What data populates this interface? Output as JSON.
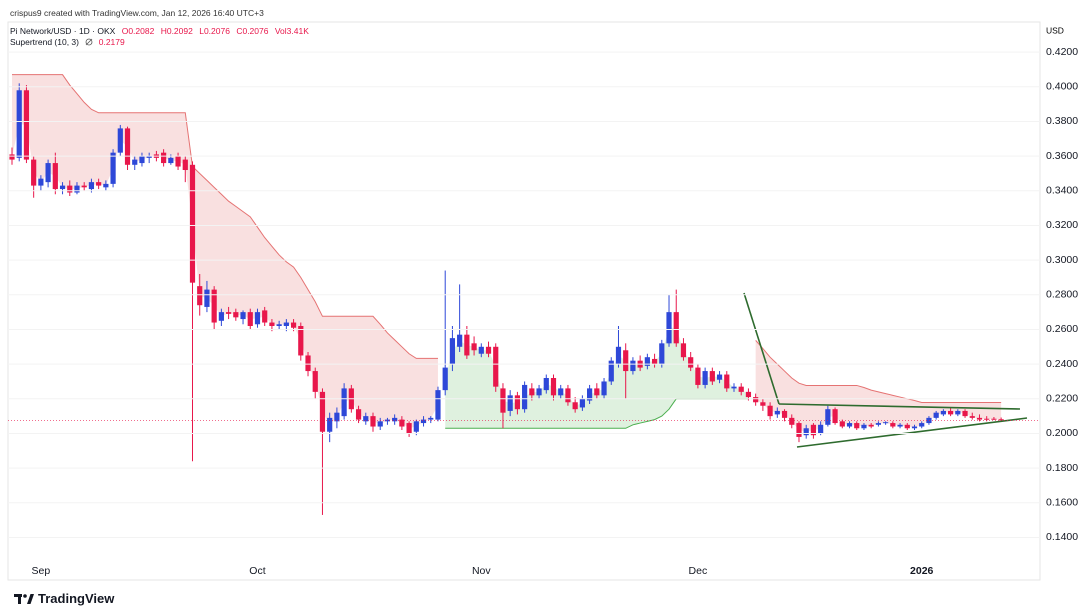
{
  "chart_data": {
    "type": "candlestick",
    "credit": "crispus9 created with TradingView.com, Jan 12, 2026 16:40 UTC+3",
    "symbol": "Pi Network/USD · 1D · OKX",
    "legend_ohlc": [
      "O0.2082",
      "H0.2092",
      "L0.2076",
      "C0.2076",
      "Vol3.41K"
    ],
    "indicator": "Supertrend (10, 3)",
    "indicator_value": "0.2179",
    "currency": "USD",
    "footer": "TradingView",
    "up_color": "#2e48d8",
    "down_color": "#e8174b",
    "supertrend_up_color": "#4caf50",
    "supertrend_down_color": "#e57373",
    "ylim": [
      0.127,
      0.427
    ],
    "yticks": [
      {
        "value": 0.14,
        "label": "0.1400"
      },
      {
        "value": 0.16,
        "label": "0.1600"
      },
      {
        "value": 0.18,
        "label": "0.1800"
      },
      {
        "value": 0.2,
        "label": "0.2000"
      },
      {
        "value": 0.22,
        "label": "0.2200"
      },
      {
        "value": 0.24,
        "label": "0.2400"
      },
      {
        "value": 0.26,
        "label": "0.2600"
      },
      {
        "value": 0.28,
        "label": "0.2800"
      },
      {
        "value": 0.3,
        "label": "0.3000"
      },
      {
        "value": 0.32,
        "label": "0.3200"
      },
      {
        "value": 0.34,
        "label": "0.3400"
      },
      {
        "value": 0.36,
        "label": "0.3600"
      },
      {
        "value": 0.38,
        "label": "0.3800"
      },
      {
        "value": 0.4,
        "label": "0.4000"
      },
      {
        "value": 0.42,
        "label": "0.4200"
      }
    ],
    "categories": [
      null,
      null,
      null,
      null,
      "Sep",
      null,
      null,
      null,
      null,
      null,
      null,
      null,
      null,
      null,
      null,
      null,
      null,
      null,
      null,
      null,
      null,
      null,
      null,
      null,
      null,
      null,
      null,
      null,
      null,
      null,
      null,
      null,
      null,
      null,
      "Oct",
      null,
      null,
      null,
      null,
      null,
      null,
      null,
      null,
      null,
      null,
      null,
      null,
      null,
      null,
      null,
      null,
      null,
      null,
      null,
      null,
      null,
      null,
      null,
      null,
      null,
      null,
      null,
      null,
      null,
      null,
      "Nov",
      null,
      null,
      null,
      null,
      null,
      null,
      null,
      null,
      null,
      null,
      null,
      null,
      null,
      null,
      null,
      null,
      null,
      null,
      null,
      null,
      null,
      null,
      null,
      null,
      null,
      null,
      null,
      null,
      null,
      "Dec",
      null,
      null,
      null,
      null,
      null,
      null,
      null,
      null,
      null,
      null,
      null,
      null,
      null,
      null,
      null,
      null,
      null,
      null,
      null,
      null,
      null,
      null,
      null,
      null,
      null,
      null,
      null,
      null,
      null,
      null,
      "2026",
      null,
      null,
      null,
      null,
      null,
      null,
      null,
      null,
      null,
      null,
      null
    ],
    "ohlc": [
      [
        0.361,
        0.365,
        0.355,
        0.358
      ],
      [
        0.359,
        0.402,
        0.357,
        0.398
      ],
      [
        0.398,
        0.401,
        0.356,
        0.358
      ],
      [
        0.358,
        0.36,
        0.336,
        0.343
      ],
      [
        0.343,
        0.349,
        0.34,
        0.347
      ],
      [
        0.345,
        0.358,
        0.342,
        0.356
      ],
      [
        0.356,
        0.362,
        0.338,
        0.341
      ],
      [
        0.341,
        0.345,
        0.338,
        0.343
      ],
      [
        0.343,
        0.346,
        0.337,
        0.339
      ],
      [
        0.339,
        0.345,
        0.338,
        0.343
      ],
      [
        0.343,
        0.345,
        0.34,
        0.342
      ],
      [
        0.341,
        0.347,
        0.339,
        0.345
      ],
      [
        0.345,
        0.347,
        0.341,
        0.343
      ],
      [
        0.342,
        0.346,
        0.34,
        0.344
      ],
      [
        0.344,
        0.364,
        0.342,
        0.362
      ],
      [
        0.362,
        0.378,
        0.36,
        0.376
      ],
      [
        0.376,
        0.377,
        0.352,
        0.355
      ],
      [
        0.355,
        0.36,
        0.352,
        0.358
      ],
      [
        0.356,
        0.362,
        0.354,
        0.36
      ],
      [
        0.359,
        0.362,
        0.356,
        0.36
      ],
      [
        0.361,
        0.363,
        0.357,
        0.359
      ],
      [
        0.362,
        0.364,
        0.354,
        0.356
      ],
      [
        0.356,
        0.361,
        0.355,
        0.359
      ],
      [
        0.36,
        0.362,
        0.352,
        0.354
      ],
      [
        0.358,
        0.36,
        0.345,
        0.352
      ],
      [
        0.355,
        0.357,
        0.184,
        0.287
      ],
      [
        0.285,
        0.292,
        0.268,
        0.274
      ],
      [
        0.273,
        0.288,
        0.27,
        0.283
      ],
      [
        0.283,
        0.285,
        0.26,
        0.264
      ],
      [
        0.265,
        0.272,
        0.262,
        0.27
      ],
      [
        0.27,
        0.273,
        0.266,
        0.269
      ],
      [
        0.27,
        0.272,
        0.265,
        0.267
      ],
      [
        0.266,
        0.271,
        0.263,
        0.27
      ],
      [
        0.27,
        0.272,
        0.26,
        0.262
      ],
      [
        0.263,
        0.272,
        0.261,
        0.27
      ],
      [
        0.271,
        0.273,
        0.262,
        0.264
      ],
      [
        0.264,
        0.266,
        0.259,
        0.262
      ],
      [
        0.262,
        0.265,
        0.26,
        0.263
      ],
      [
        0.262,
        0.266,
        0.259,
        0.264
      ],
      [
        0.264,
        0.266,
        0.259,
        0.261
      ],
      [
        0.262,
        0.264,
        0.242,
        0.245
      ],
      [
        0.245,
        0.247,
        0.233,
        0.236
      ],
      [
        0.236,
        0.238,
        0.22,
        0.224
      ],
      [
        0.224,
        0.226,
        0.153,
        0.201
      ],
      [
        0.201,
        0.212,
        0.195,
        0.209
      ],
      [
        0.207,
        0.215,
        0.203,
        0.212
      ],
      [
        0.21,
        0.229,
        0.208,
        0.226
      ],
      [
        0.226,
        0.228,
        0.212,
        0.214
      ],
      [
        0.214,
        0.216,
        0.206,
        0.208
      ],
      [
        0.207,
        0.212,
        0.205,
        0.21
      ],
      [
        0.21,
        0.212,
        0.201,
        0.204
      ],
      [
        0.204,
        0.209,
        0.202,
        0.207
      ],
      [
        0.207,
        0.209,
        0.205,
        0.208
      ],
      [
        0.207,
        0.211,
        0.205,
        0.209
      ],
      [
        0.208,
        0.21,
        0.202,
        0.204
      ],
      [
        0.206,
        0.207,
        0.198,
        0.2
      ],
      [
        0.201,
        0.208,
        0.199,
        0.207
      ],
      [
        0.206,
        0.21,
        0.204,
        0.208
      ],
      [
        0.208,
        0.21,
        0.206,
        0.209
      ],
      [
        0.208,
        0.227,
        0.207,
        0.225
      ],
      [
        0.225,
        0.294,
        0.222,
        0.238
      ],
      [
        0.24,
        0.262,
        0.236,
        0.255
      ],
      [
        0.25,
        0.286,
        0.247,
        0.257
      ],
      [
        0.257,
        0.262,
        0.243,
        0.245
      ],
      [
        0.252,
        0.256,
        0.245,
        0.248
      ],
      [
        0.246,
        0.252,
        0.244,
        0.25
      ],
      [
        0.25,
        0.253,
        0.244,
        0.246
      ],
      [
        0.25,
        0.252,
        0.224,
        0.227
      ],
      [
        0.226,
        0.229,
        0.203,
        0.212
      ],
      [
        0.213,
        0.225,
        0.21,
        0.222
      ],
      [
        0.222,
        0.224,
        0.211,
        0.214
      ],
      [
        0.214,
        0.23,
        0.212,
        0.228
      ],
      [
        0.226,
        0.229,
        0.219,
        0.222
      ],
      [
        0.222,
        0.228,
        0.22,
        0.226
      ],
      [
        0.225,
        0.234,
        0.223,
        0.232
      ],
      [
        0.232,
        0.234,
        0.219,
        0.222
      ],
      [
        0.222,
        0.228,
        0.22,
        0.226
      ],
      [
        0.226,
        0.228,
        0.216,
        0.218
      ],
      [
        0.218,
        0.221,
        0.212,
        0.214
      ],
      [
        0.215,
        0.222,
        0.213,
        0.22
      ],
      [
        0.219,
        0.228,
        0.217,
        0.226
      ],
      [
        0.226,
        0.229,
        0.22,
        0.222
      ],
      [
        0.222,
        0.232,
        0.22,
        0.23
      ],
      [
        0.23,
        0.244,
        0.228,
        0.242
      ],
      [
        0.24,
        0.262,
        0.238,
        0.25
      ],
      [
        0.248,
        0.252,
        0.22,
        0.236
      ],
      [
        0.236,
        0.244,
        0.234,
        0.242
      ],
      [
        0.242,
        0.245,
        0.236,
        0.238
      ],
      [
        0.239,
        0.246,
        0.237,
        0.244
      ],
      [
        0.243,
        0.246,
        0.238,
        0.24
      ],
      [
        0.24,
        0.254,
        0.238,
        0.252
      ],
      [
        0.252,
        0.28,
        0.25,
        0.27
      ],
      [
        0.27,
        0.283,
        0.25,
        0.252
      ],
      [
        0.252,
        0.255,
        0.242,
        0.244
      ],
      [
        0.244,
        0.247,
        0.236,
        0.238
      ],
      [
        0.238,
        0.24,
        0.226,
        0.228
      ],
      [
        0.228,
        0.238,
        0.226,
        0.236
      ],
      [
        0.236,
        0.238,
        0.228,
        0.23
      ],
      [
        0.231,
        0.236,
        0.229,
        0.234
      ],
      [
        0.234,
        0.236,
        0.224,
        0.226
      ],
      [
        0.226,
        0.229,
        0.224,
        0.227
      ],
      [
        0.227,
        0.229,
        0.222,
        0.224
      ],
      [
        0.224,
        0.226,
        0.219,
        0.221
      ],
      [
        0.221,
        0.223,
        0.216,
        0.218
      ],
      [
        0.218,
        0.22,
        0.213,
        0.216
      ],
      [
        0.216,
        0.218,
        0.208,
        0.21
      ],
      [
        0.211,
        0.215,
        0.209,
        0.213
      ],
      [
        0.213,
        0.214,
        0.207,
        0.209
      ],
      [
        0.209,
        0.211,
        0.203,
        0.205
      ],
      [
        0.206,
        0.207,
        0.195,
        0.198
      ],
      [
        0.199,
        0.205,
        0.197,
        0.203
      ],
      [
        0.205,
        0.206,
        0.197,
        0.199
      ],
      [
        0.2,
        0.207,
        0.199,
        0.205
      ],
      [
        0.205,
        0.216,
        0.204,
        0.214
      ],
      [
        0.214,
        0.215,
        0.205,
        0.206
      ],
      [
        0.207,
        0.208,
        0.203,
        0.204
      ],
      [
        0.204,
        0.207,
        0.203,
        0.206
      ],
      [
        0.206,
        0.207,
        0.202,
        0.203
      ],
      [
        0.203,
        0.206,
        0.202,
        0.205
      ],
      [
        0.205,
        0.206,
        0.203,
        0.204
      ],
      [
        0.205,
        0.207,
        0.204,
        0.206
      ],
      [
        0.206,
        0.207,
        0.205,
        0.2065
      ],
      [
        0.206,
        0.207,
        0.203,
        0.204
      ],
      [
        0.204,
        0.206,
        0.203,
        0.205
      ],
      [
        0.205,
        0.206,
        0.202,
        0.203
      ],
      [
        0.203,
        0.205,
        0.202,
        0.204
      ],
      [
        0.204,
        0.207,
        0.203,
        0.206
      ],
      [
        0.206,
        0.21,
        0.205,
        0.209
      ],
      [
        0.209,
        0.213,
        0.208,
        0.212
      ],
      [
        0.211,
        0.214,
        0.21,
        0.213
      ],
      [
        0.213,
        0.215,
        0.21,
        0.211
      ],
      [
        0.211,
        0.214,
        0.21,
        0.213
      ],
      [
        0.213,
        0.214,
        0.209,
        0.21
      ],
      [
        0.21,
        0.212,
        0.208,
        0.209
      ],
      [
        0.209,
        0.211,
        0.207,
        0.208
      ],
      [
        0.2085,
        0.21,
        0.207,
        0.2083
      ],
      [
        0.2085,
        0.2095,
        0.2078,
        0.2082
      ],
      [
        0.2082,
        0.2092,
        0.2076,
        0.2076
      ]
    ],
    "supertrend": [
      0.407,
      0.407,
      0.407,
      0.407,
      0.407,
      0.407,
      0.407,
      0.407,
      0.401,
      0.396,
      0.391,
      0.387,
      0.385,
      0.385,
      0.385,
      0.385,
      0.385,
      0.385,
      0.385,
      0.385,
      0.385,
      0.385,
      0.385,
      0.385,
      0.385,
      0.354,
      0.35,
      0.346,
      0.342,
      0.338,
      0.334,
      0.331,
      0.328,
      0.325,
      0.319,
      0.313,
      0.308,
      0.303,
      0.299,
      0.296,
      0.29,
      0.283,
      0.276,
      0.2676,
      0.2676,
      0.2676,
      0.2676,
      0.2676,
      0.2676,
      0.2676,
      0.2676,
      0.263,
      0.258,
      0.254,
      0.25,
      0.246,
      0.2433,
      0.2433,
      0.2433,
      0.2433,
      0.203,
      0.203,
      0.203,
      0.203,
      0.203,
      0.203,
      0.203,
      0.203,
      0.203,
      0.203,
      0.203,
      0.203,
      0.203,
      0.203,
      0.203,
      0.203,
      0.203,
      0.203,
      0.203,
      0.203,
      0.203,
      0.203,
      0.203,
      0.203,
      0.203,
      0.203,
      0.205,
      0.206,
      0.207,
      0.208,
      0.21,
      0.214,
      0.22,
      0.22,
      0.22,
      0.22,
      0.22,
      0.22,
      0.22,
      0.22,
      0.22,
      0.22,
      0.22,
      0.2537,
      0.249,
      0.244,
      0.24,
      0.236,
      0.232,
      0.229,
      0.2277,
      0.2277,
      0.2277,
      0.2277,
      0.2277,
      0.2277,
      0.2277,
      0.2277,
      0.2265,
      0.225,
      0.224,
      0.223,
      0.222,
      0.221,
      0.22,
      0.219,
      0.2179,
      0.2179,
      0.2179,
      0.2179,
      0.2179,
      0.2179,
      0.2179,
      0.2179,
      0.2179,
      0.2179,
      0.2179,
      0.2179
    ]
  }
}
